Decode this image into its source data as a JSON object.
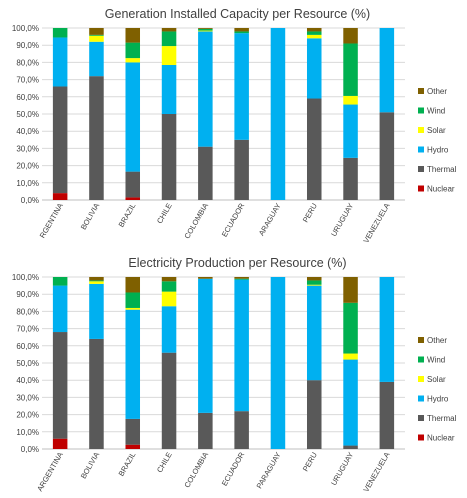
{
  "colors": {
    "Nuclear": "#c00000",
    "Thermal": "#595959",
    "Hydro": "#00b0f0",
    "Solar": "#ffff00",
    "Wind": "#00b050",
    "Other": "#7f6000",
    "grid": "#d9d9d9",
    "axis": "#bfbfbf"
  },
  "chart_data": [
    {
      "type": "bar",
      "stacked": true,
      "title": "Generation Installed Capacity per Resource (%)",
      "categories": [
        "ARGENTINA",
        "BOLIVIA",
        "BRAZIL",
        "CHILE",
        "COLOMBIA",
        "ECUADOR",
        "PARAGUAY",
        "PERU",
        "URUGUAY",
        "VENEZUELA"
      ],
      "category_labels_display": [
        "RGENTINA",
        "BOLIVIA",
        "BRAZIL",
        "CHILE",
        "COLOMBIA",
        "ECUADOR",
        "ARAGUAY",
        "PERU",
        "URUGUAY",
        "VENEZUELA"
      ],
      "ylim": [
        0,
        100
      ],
      "yticks": [
        "0,0%",
        "10,0%",
        "20,0%",
        "30,0%",
        "40,0%",
        "50,0%",
        "60,0%",
        "70,0%",
        "80,0%",
        "90,0%",
        "100,0%"
      ],
      "grid": true,
      "legend": "right",
      "series": [
        {
          "name": "Nuclear",
          "values": [
            4,
            0,
            1.5,
            0,
            0,
            0,
            0,
            0,
            0,
            0
          ]
        },
        {
          "name": "Thermal",
          "values": [
            62,
            72,
            15,
            50,
            31,
            35,
            0,
            59,
            24.5,
            51
          ]
        },
        {
          "name": "Hydro",
          "values": [
            28.5,
            20,
            63.5,
            28.5,
            67,
            62,
            100,
            35,
            31,
            49
          ]
        },
        {
          "name": "Solar",
          "values": [
            0,
            3.5,
            2.5,
            11,
            0.5,
            0,
            0,
            2,
            5,
            0
          ]
        },
        {
          "name": "Wind",
          "values": [
            5.5,
            0.5,
            9,
            8.5,
            1,
            1,
            0,
            2,
            30.5,
            0
          ]
        },
        {
          "name": "Other",
          "values": [
            0,
            4,
            8.5,
            2,
            0.5,
            2,
            0,
            2,
            9,
            0
          ]
        }
      ],
      "legend_order": [
        "Other",
        "Wind",
        "Solar",
        "Hydro",
        "Thermal",
        "Nuclear"
      ]
    },
    {
      "type": "bar",
      "stacked": true,
      "title": "Electricity Production per Resource (%)",
      "categories": [
        "ARGENTINA",
        "BOLIVIA",
        "BRAZIL",
        "CHILE",
        "COLOMBIA",
        "ECUADOR",
        "PARAGUAY",
        "PERU",
        "URUGUAY",
        "VENEZUELA"
      ],
      "category_labels_display": [
        "ARGENTINA",
        "BOLIVIA",
        "BRAZIL",
        "CHILE",
        "COLOMBIA",
        "ECUADOR",
        "PARAGUAY",
        "PERU",
        "URUGUAY",
        "VENEZUELA"
      ],
      "ylim": [
        0,
        100
      ],
      "yticks": [
        "0,0%",
        "10,0%",
        "20,0%",
        "30,0%",
        "40,0%",
        "50,0%",
        "60,0%",
        "70,0%",
        "80,0%",
        "90,0%",
        "100,0%"
      ],
      "grid": true,
      "legend": "right",
      "series": [
        {
          "name": "Nuclear",
          "values": [
            6,
            0,
            2.5,
            0,
            0,
            0,
            0,
            0,
            0,
            0
          ]
        },
        {
          "name": "Thermal",
          "values": [
            62,
            64,
            15,
            56,
            21,
            22,
            0,
            40,
            2,
            39
          ]
        },
        {
          "name": "Hydro",
          "values": [
            27,
            32,
            63.5,
            27,
            78,
            76.5,
            100,
            55,
            50,
            61
          ]
        },
        {
          "name": "Solar",
          "values": [
            0,
            1.5,
            1,
            8.5,
            0,
            0,
            0,
            0.5,
            3.5,
            0
          ]
        },
        {
          "name": "Wind",
          "values": [
            5,
            0.5,
            9,
            6,
            0,
            0.5,
            0,
            2.5,
            29.5,
            0
          ]
        },
        {
          "name": "Other",
          "values": [
            0,
            2,
            9,
            2.5,
            1,
            1,
            0,
            2,
            15,
            0
          ]
        }
      ],
      "legend_order": [
        "Other",
        "Wind",
        "Solar",
        "Hydro",
        "Thermal",
        "Nuclear"
      ]
    }
  ]
}
